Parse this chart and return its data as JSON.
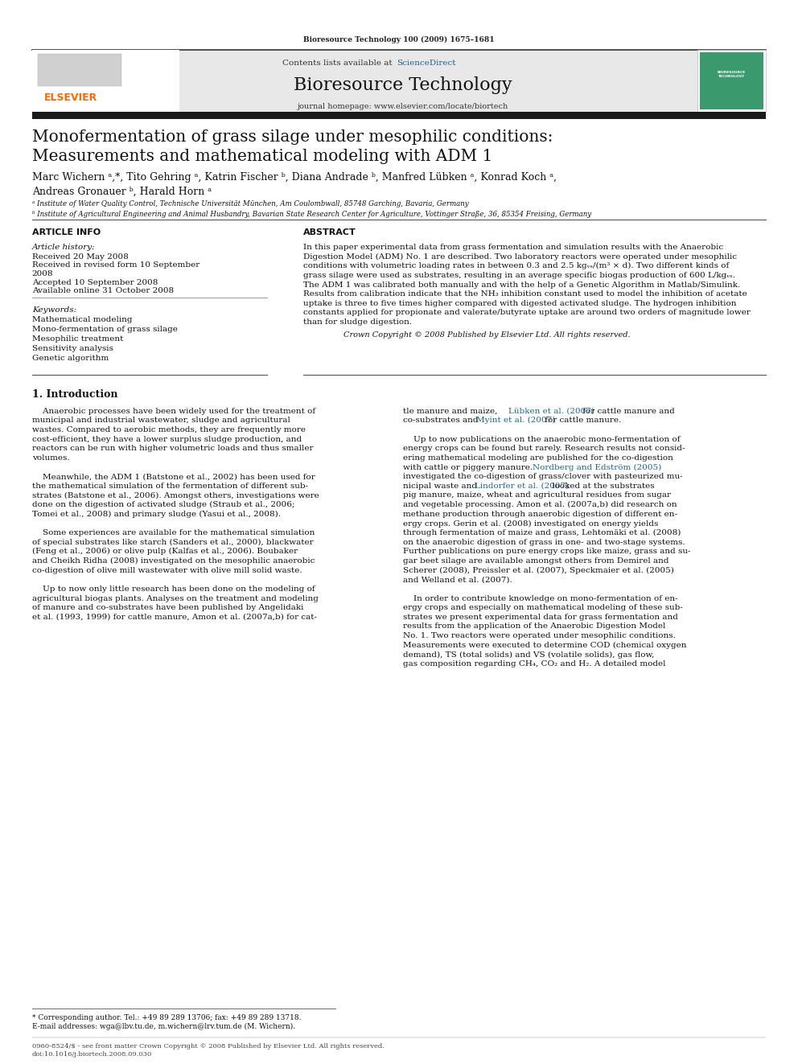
{
  "page_width": 9.92,
  "page_height": 13.23,
  "bg_color": "#ffffff",
  "journal_ref": "Bioresource Technology 100 (2009) 1675–1681",
  "header_bg": "#e8e8e8",
  "sciencedirect_color": "#1a6496",
  "journal_title": "Bioresource Technology",
  "journal_homepage": "journal homepage: www.elsevier.com/locate/biortech",
  "elsevier_color": "#ff6600",
  "paper_title_line1": "Monofermentation of grass silage under mesophilic conditions:",
  "paper_title_line2": "Measurements and mathematical modeling with ADM 1",
  "authors": "Marc Wichern ᵃ,*, Tito Gehring ᵃ, Katrin Fischer ᵇ, Diana Andrade ᵇ, Manfred Lübken ᵃ, Konrad Koch ᵃ,",
  "authors2": "Andreas Gronauer ᵇ, Harald Horn ᵃ",
  "affil_a": "ᵃ Institute of Water Quality Control, Technische Universität München, Am Coulombwall, 85748 Garching, Bavaria, Germany",
  "affil_b": "ᵇ Institute of Agricultural Engineering and Animal Husbandry, Bavarian State Research Center for Agriculture, Vottinger Straße, 36, 85354 Freising, Germany",
  "article_info_label": "ARTICLE INFO",
  "abstract_label": "ABSTRACT",
  "article_history_label": "Article history:",
  "received1": "Received 20 May 2008",
  "received2": "Received in revised form 10 September",
  "received2b": "2008",
  "accepted": "Accepted 10 September 2008",
  "available": "Available online 31 October 2008",
  "keywords_label": "Keywords:",
  "keywords": [
    "Mathematical modeling",
    "Mono-fermentation of grass silage",
    "Mesophilic treatment",
    "Sensitivity analysis",
    "Genetic algorithm"
  ],
  "copyright": "Crown Copyright © 2008 Published by Elsevier Ltd. All rights reserved.",
  "intro_heading": "1. Introduction",
  "footnote": "* Corresponding author. Tel.: +49 89 289 13706; fax: +49 89 289 13718.",
  "footnote2": "E-mail addresses: wga@lbv.tu.de, m.wichern@lrv.tum.de (M. Wichern).",
  "footer1": "0960-8524/$ - see front matter Crown Copyright © 2008 Published by Elsevier Ltd. All rights reserved.",
  "footer2": "doi:10.1016/j.biortech.2008.09.030",
  "abstract_lines": [
    "In this paper experimental data from grass fermentation and simulation results with the Anaerobic",
    "Digestion Model (ADM) No. 1 are described. Two laboratory reactors were operated under mesophilic",
    "conditions with volumetric loading rates in between 0.3 and 2.5 kgᵥₛ/(m³ × d). Two different kinds of",
    "grass silage were used as substrates, resulting in an average specific biogas production of 600 L/kgᵥₛ.",
    "The ADM 1 was calibrated both manually and with the help of a Genetic Algorithm in Matlab/Simulink.",
    "Results from calibration indicate that the NH₃ inhibition constant used to model the inhibition of acetate",
    "uptake is three to five times higher compared with digested activated sludge. The hydrogen inhibition",
    "constants applied for propionate and valerate/butyrate uptake are around two orders of magnitude lower",
    "than for sludge digestion."
  ],
  "col1_lines": [
    "    Anaerobic processes have been widely used for the treatment of",
    "municipal and industrial wastewater, sludge and agricultural",
    "wastes. Compared to aerobic methods, they are frequently more",
    "cost-efficient, they have a lower surplus sludge production, and",
    "reactors can be run with higher volumetric loads and thus smaller",
    "volumes.",
    "",
    "    Meanwhile, the ADM 1 (Batstone et al., 2002) has been used for",
    "the mathematical simulation of the fermentation of different sub-",
    "strates (Batstone et al., 2006). Amongst others, investigations were",
    "done on the digestion of activated sludge (Straub et al., 2006;",
    "Tomei et al., 2008) and primary sludge (Yasui et al., 2008).",
    "",
    "    Some experiences are available for the mathematical simulation",
    "of special substrates like starch (Sanders et al., 2000), blackwater",
    "(Feng et al., 2006) or olive pulp (Kalfas et al., 2006). Boubaker",
    "and Cheikh Ridha (2008) investigated on the mesophilic anaerobic",
    "co-digestion of olive mill wastewater with olive mill solid waste.",
    "",
    "    Up to now only little research has been done on the modeling of",
    "agricultural biogas plants. Analyses on the treatment and modeling",
    "of manure and co-substrates have been published by Angelidaki",
    "et al. (1993, 1999) for cattle manure, Amon et al. (2007a,b) for cat-"
  ],
  "col2_lines": [
    "tle manure and maize, Lübken et al. (2007) for cattle manure and",
    "co-substrates and Myint et al. (2007) for cattle manure.",
    "",
    "    Up to now publications on the anaerobic mono-fermentation of",
    "energy crops can be found but rarely. Research results not consid-",
    "ering mathematical modeling are published for the co-digestion",
    "with cattle or piggery manure. Nordberg and Edström (2005)",
    "investigated the co-digestion of grass/clover with pasteurized mu-",
    "nicipal waste and Lindorfer et al. (2007) looked at the substrates",
    "pig manure, maize, wheat and agricultural residues from sugar",
    "and vegetable processing. Amon et al. (2007a,b) did research on",
    "methane production through anaerobic digestion of different en-",
    "ergy crops. Gerin et al. (2008) investigated on energy yields",
    "through fermentation of maize and grass, Lehtomäki et al. (2008)",
    "on the anaerobic digestion of grass in one- and two-stage systems.",
    "Further publications on pure energy crops like maize, grass and su-",
    "gar beet silage are available amongst others from Demirel and",
    "Scherer (2008), Preissler et al. (2007), Speckmaier et al. (2005)",
    "and Welland et al. (2007).",
    "",
    "    In order to contribute knowledge on mono-fermentation of en-",
    "ergy crops and especially on mathematical modeling of these sub-",
    "strates we present experimental data for grass fermentation and",
    "results from the application of the Anaerobic Digestion Model",
    "No. 1. Two reactors were operated under mesophilic conditions.",
    "Measurements were executed to determine COD (chemical oxygen",
    "demand), TS (total solids) and VS (volatile solids), gas flow,",
    "gas composition regarding CH₄, CO₂ and H₂. A detailed model"
  ]
}
